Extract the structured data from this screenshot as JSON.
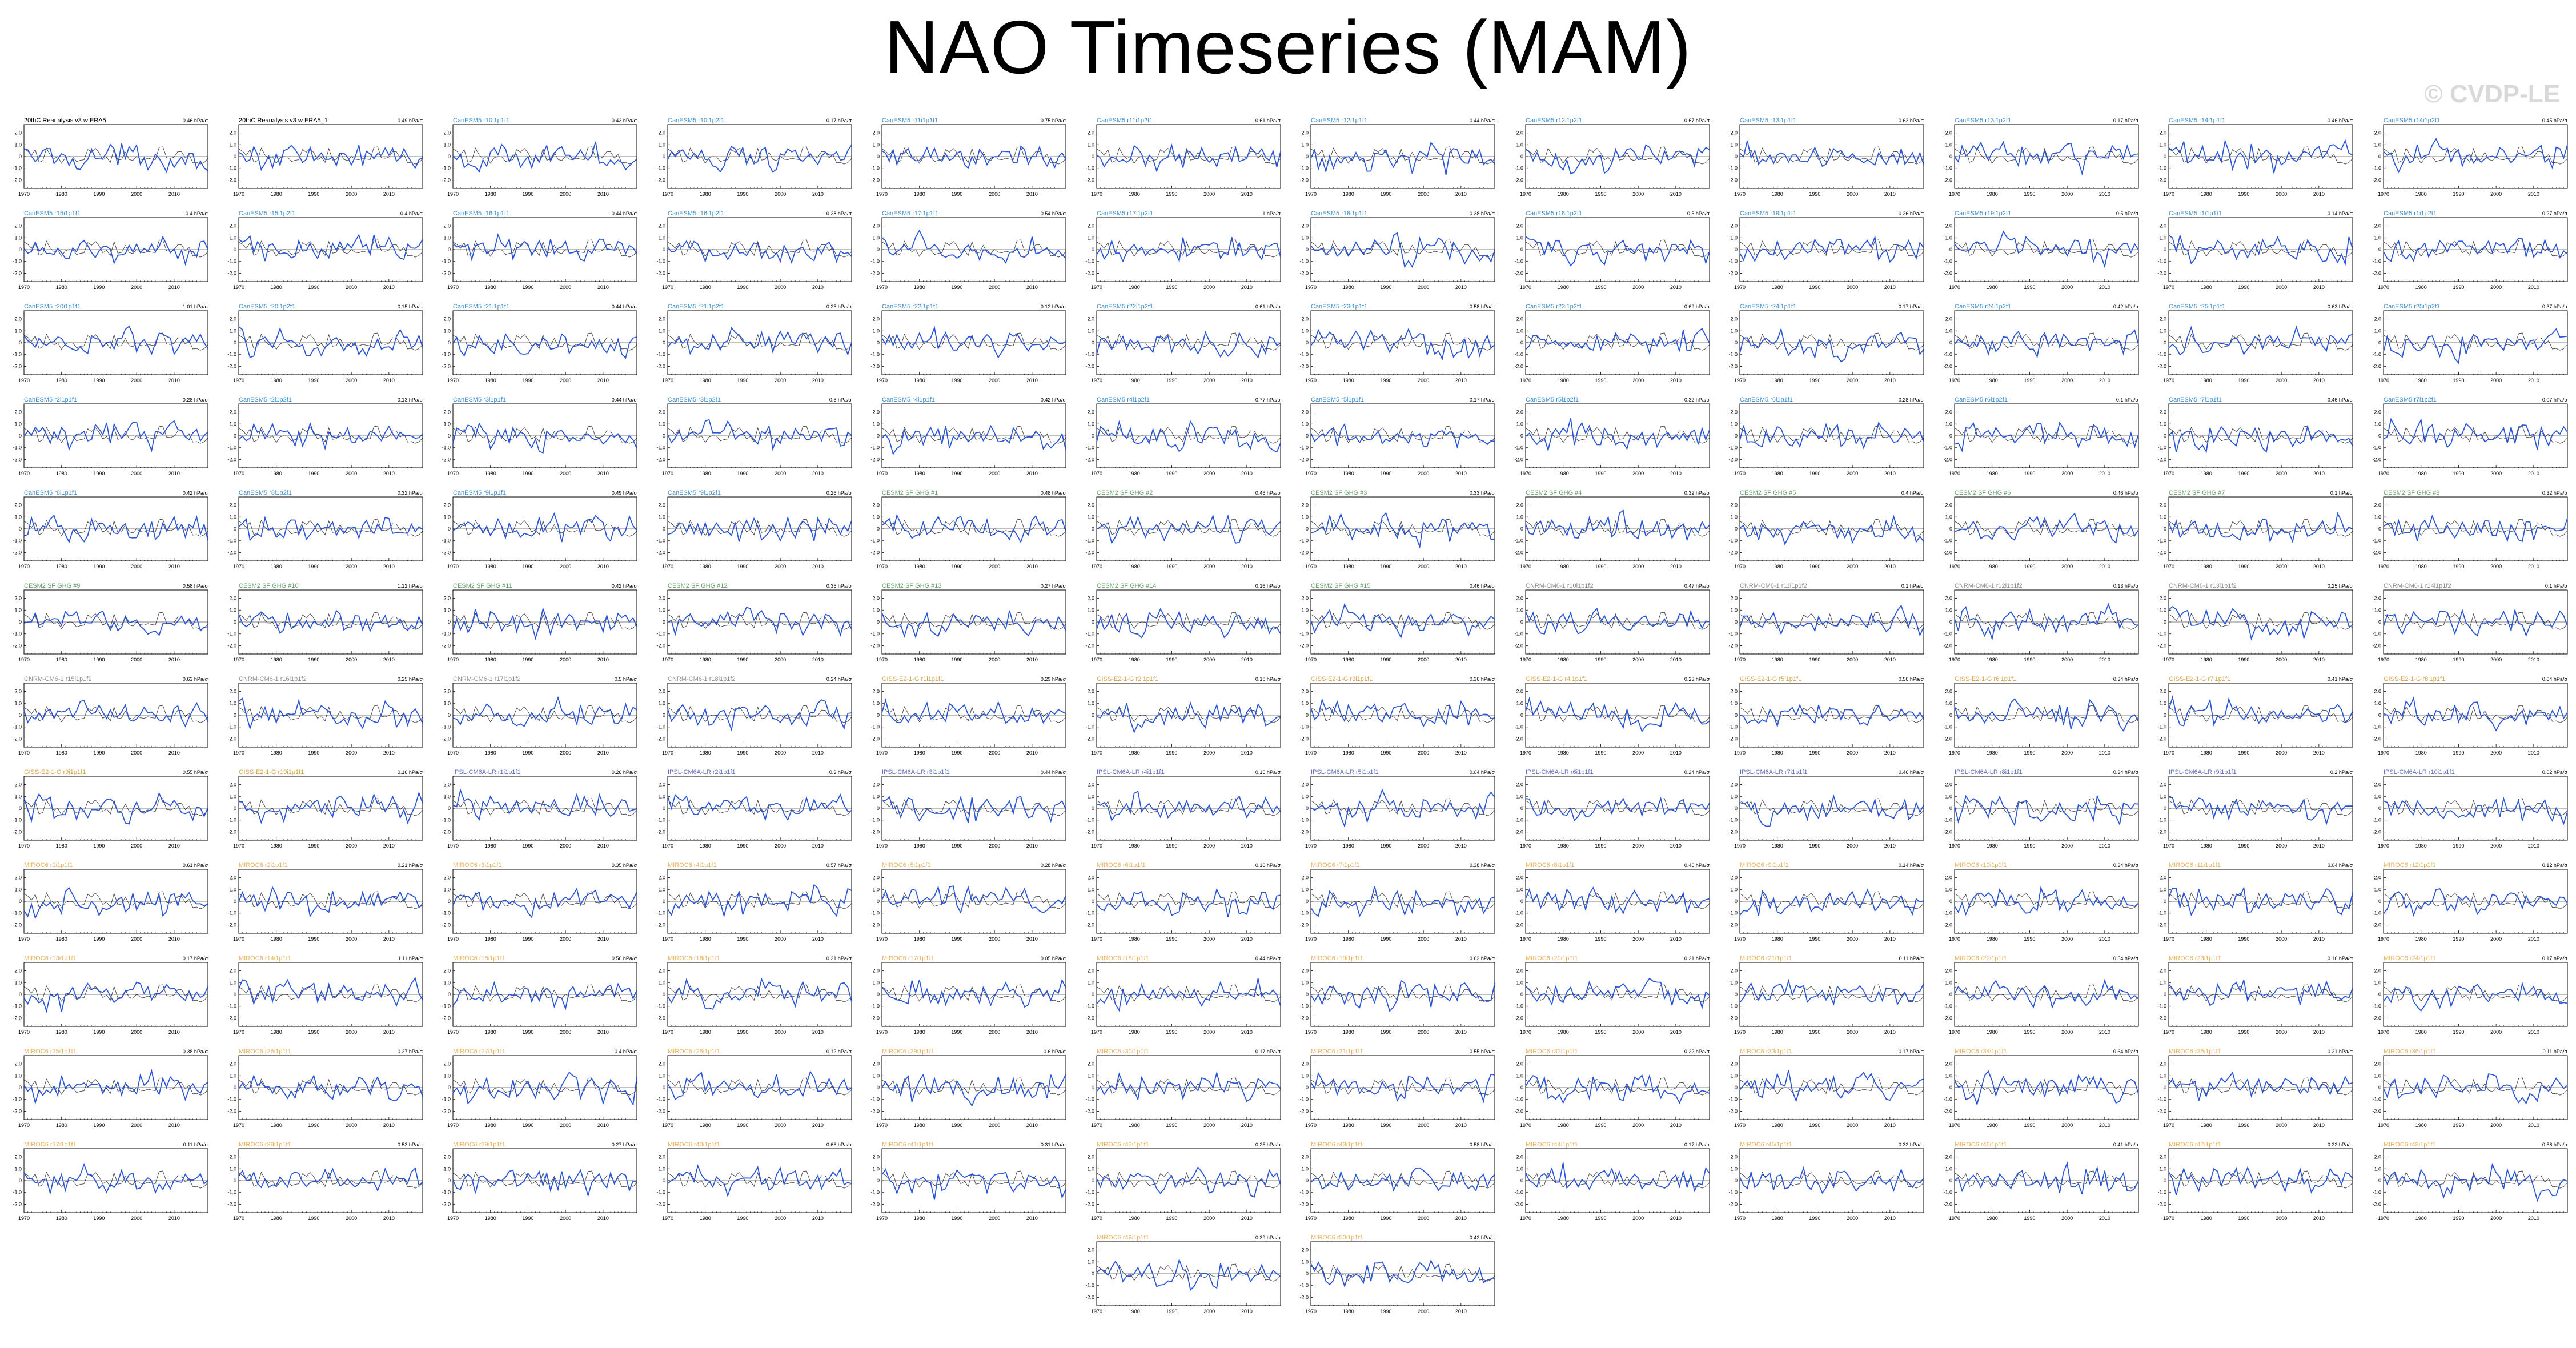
{
  "page": {
    "title": "NAO Timeseries (MAM)",
    "watermark": "© CVDP-LE"
  },
  "colors": {
    "model": "#2a55d8",
    "observed": "#000000",
    "title_obs": "#000000",
    "title_cesm": "#3d8fd0",
    "title_cesm_sf": "#63a06a",
    "title_canesm": "#8f8f8f",
    "title_gfdl": "#d8a44a",
    "title_ipsl": "#5e6fc0",
    "title_miroc": "#e9b35f"
  },
  "chart_data": {
    "type": "line",
    "xlim": [
      1970,
      2019
    ],
    "x_ticks": [
      "1970",
      "1980",
      "1990",
      "2000",
      "2010"
    ],
    "ylim": [
      -2.7,
      2.7
    ],
    "y_ticks": [
      "2.0",
      "1.0",
      "0",
      "-1.0",
      "-2.0"
    ],
    "grid": false,
    "years": [
      1970,
      2019
    ],
    "panels": [
      {
        "title": "20thC Reanalysis v3 w ERA5",
        "note": "0.46 hPa/σ",
        "group": "obs"
      },
      {
        "title": "20thC Reanalysis v3 w ERA5_1",
        "note": "0.49 hPa/σ",
        "group": "obs"
      },
      {
        "title": "CanESM5 r10i1p1f1",
        "note": "0.43 hPa/σ",
        "group": "cesm"
      },
      {
        "title": "CanESM5 r10i1p2f1",
        "note": "0.17 hPa/σ",
        "group": "cesm"
      },
      {
        "title": "CanESM5 r11i1p1f1",
        "note": "0.75 hPa/σ",
        "group": "cesm"
      },
      {
        "title": "CanESM5 r11i1p2f1",
        "note": "0.61 hPa/σ",
        "group": "cesm"
      },
      {
        "title": "CanESM5 r12i1p1f1",
        "note": "0.44 hPa/σ",
        "group": "cesm"
      },
      {
        "title": "CanESM5 r12i1p2f1",
        "note": "0.67 hPa/σ",
        "group": "cesm"
      },
      {
        "title": "CanESM5 r13i1p1f1",
        "note": "0.63 hPa/σ",
        "group": "cesm"
      },
      {
        "title": "CanESM5 r13i1p2f1",
        "note": "0.17 hPa/σ",
        "group": "cesm"
      },
      {
        "title": "CanESM5 r14i1p1f1",
        "note": "0.46 hPa/σ",
        "group": "cesm"
      },
      {
        "title": "CanESM5 r14i1p2f1",
        "note": "0.45 hPa/σ",
        "group": "cesm"
      },
      {
        "title": "CanESM5 r15i1p1f1",
        "note": "0.4 hPa/σ",
        "group": "cesm"
      },
      {
        "title": "CanESM5 r15i1p2f1",
        "note": "0.4 hPa/σ",
        "group": "cesm"
      },
      {
        "title": "CanESM5 r16i1p1f1",
        "note": "0.44 hPa/σ",
        "group": "cesm"
      },
      {
        "title": "CanESM5 r16i1p2f1",
        "note": "0.28 hPa/σ",
        "group": "cesm"
      },
      {
        "title": "CanESM5 r17i1p1f1",
        "note": "0.54 hPa/σ",
        "group": "cesm"
      },
      {
        "title": "CanESM5 r17i1p2f1",
        "note": "1 hPa/σ",
        "group": "cesm"
      },
      {
        "title": "CanESM5 r18i1p1f1",
        "note": "0.38 hPa/σ",
        "group": "cesm"
      },
      {
        "title": "CanESM5 r18i1p2f1",
        "note": "0.5 hPa/σ",
        "group": "cesm"
      },
      {
        "title": "CanESM5 r19i1p1f1",
        "note": "0.26 hPa/σ",
        "group": "cesm"
      },
      {
        "title": "CanESM5 r19i1p2f1",
        "note": "0.5 hPa/σ",
        "group": "cesm"
      },
      {
        "title": "CanESM5 r1i1p1f1",
        "note": "0.14 hPa/σ",
        "group": "cesm"
      },
      {
        "title": "CanESM5 r1i1p2f1",
        "note": "0.27 hPa/σ",
        "group": "cesm"
      },
      {
        "title": "CanESM5 r20i1p1f1",
        "note": "1.01 hPa/σ",
        "group": "cesm"
      },
      {
        "title": "CanESM5 r20i1p2f1",
        "note": "0.15 hPa/σ",
        "group": "cesm"
      },
      {
        "title": "CanESM5 r21i1p1f1",
        "note": "0.44 hPa/σ",
        "group": "cesm"
      },
      {
        "title": "CanESM5 r21i1p2f1",
        "note": "0.25 hPa/σ",
        "group": "cesm"
      },
      {
        "title": "CanESM5 r22i1p1f1",
        "note": "0.12 hPa/σ",
        "group": "cesm"
      },
      {
        "title": "CanESM5 r22i1p2f1",
        "note": "0.61 hPa/σ",
        "group": "cesm"
      },
      {
        "title": "CanESM5 r23i1p1f1",
        "note": "0.58 hPa/σ",
        "group": "cesm"
      },
      {
        "title": "CanESM5 r23i1p2f1",
        "note": "0.69 hPa/σ",
        "group": "cesm"
      },
      {
        "title": "CanESM5 r24i1p1f1",
        "note": "0.17 hPa/σ",
        "group": "cesm"
      },
      {
        "title": "CanESM5 r24i1p2f1",
        "note": "0.42 hPa/σ",
        "group": "cesm"
      },
      {
        "title": "CanESM5 r25i1p1f1",
        "note": "0.63 hPa/σ",
        "group": "cesm"
      },
      {
        "title": "CanESM5 r25i1p2f1",
        "note": "0.37 hPa/σ",
        "group": "cesm"
      },
      {
        "title": "CanESM5 r2i1p1f1",
        "note": "0.28 hPa/σ",
        "group": "cesm"
      },
      {
        "title": "CanESM5 r2i1p2f1",
        "note": "0.13 hPa/σ",
        "group": "cesm"
      },
      {
        "title": "CanESM5 r3i1p1f1",
        "note": "0.44 hPa/σ",
        "group": "cesm"
      },
      {
        "title": "CanESM5 r3i1p2f1",
        "note": "0.5 hPa/σ",
        "group": "cesm"
      },
      {
        "title": "CanESM5 r4i1p1f1",
        "note": "0.42 hPa/σ",
        "group": "cesm"
      },
      {
        "title": "CanESM5 r4i1p2f1",
        "note": "0.77 hPa/σ",
        "group": "cesm"
      },
      {
        "title": "CanESM5 r5i1p1f1",
        "note": "0.17 hPa/σ",
        "group": "cesm"
      },
      {
        "title": "CanESM5 r5i1p2f1",
        "note": "0.32 hPa/σ",
        "group": "cesm"
      },
      {
        "title": "CanESM5 r6i1p1f1",
        "note": "0.28 hPa/σ",
        "group": "cesm"
      },
      {
        "title": "CanESM5 r6i1p2f1",
        "note": "0.1 hPa/σ",
        "group": "cesm"
      },
      {
        "title": "CanESM5 r7i1p1f1",
        "note": "0.46 hPa/σ",
        "group": "cesm"
      },
      {
        "title": "CanESM5 r7i1p2f1",
        "note": "0.07 hPa/σ",
        "group": "cesm"
      },
      {
        "title": "CanESM5 r8i1p1f1",
        "note": "0.42 hPa/σ",
        "group": "cesm"
      },
      {
        "title": "CanESM5 r8i1p2f1",
        "note": "0.32 hPa/σ",
        "group": "cesm"
      },
      {
        "title": "CanESM5 r9i1p1f1",
        "note": "0.49 hPa/σ",
        "group": "cesm"
      },
      {
        "title": "CanESM5 r9i1p2f1",
        "note": "0.26 hPa/σ",
        "group": "cesm"
      },
      {
        "title": "CESM2 SF GHG #1",
        "note": "0.48 hPa/σ",
        "group": "cesm_sf"
      },
      {
        "title": "CESM2 SF GHG #2",
        "note": "0.46 hPa/σ",
        "group": "cesm_sf"
      },
      {
        "title": "CESM2 SF GHG #3",
        "note": "0.33 hPa/σ",
        "group": "cesm_sf"
      },
      {
        "title": "CESM2 SF GHG #4",
        "note": "0.32 hPa/σ",
        "group": "cesm_sf"
      },
      {
        "title": "CESM2 SF GHG #5",
        "note": "0.4 hPa/σ",
        "group": "cesm_sf"
      },
      {
        "title": "CESM2 SF GHG #6",
        "note": "0.46 hPa/σ",
        "group": "cesm_sf"
      },
      {
        "title": "CESM2 SF GHG #7",
        "note": "0.1 hPa/σ",
        "group": "cesm_sf"
      },
      {
        "title": "CESM2 SF GHG #8",
        "note": "0.32 hPa/σ",
        "group": "cesm_sf"
      },
      {
        "title": "CESM2 SF GHG #9",
        "note": "0.58 hPa/σ",
        "group": "cesm_sf"
      },
      {
        "title": "CESM2 SF GHG #10",
        "note": "1.12 hPa/σ",
        "group": "cesm_sf"
      },
      {
        "title": "CESM2 SF GHG #11",
        "note": "0.42 hPa/σ",
        "group": "cesm_sf"
      },
      {
        "title": "CESM2 SF GHG #12",
        "note": "0.35 hPa/σ",
        "group": "cesm_sf"
      },
      {
        "title": "CESM2 SF GHG #13",
        "note": "0.27 hPa/σ",
        "group": "cesm_sf"
      },
      {
        "title": "CESM2 SF GHG #14",
        "note": "0.16 hPa/σ",
        "group": "cesm_sf"
      },
      {
        "title": "CESM2 SF GHG #15",
        "note": "0.46 hPa/σ",
        "group": "cesm_sf"
      },
      {
        "title": "CNRM-CM6-1 r10i1p1f2",
        "note": "0.47 hPa/σ",
        "group": "canesm"
      },
      {
        "title": "CNRM-CM6-1 r11i1p1f2",
        "note": "0.1 hPa/σ",
        "group": "canesm"
      },
      {
        "title": "CNRM-CM6-1 r12i1p1f2",
        "note": "0.13 hPa/σ",
        "group": "canesm"
      },
      {
        "title": "CNRM-CM6-1 r13i1p1f2",
        "note": "0.25 hPa/σ",
        "group": "canesm"
      },
      {
        "title": "CNRM-CM6-1 r14i1p1f2",
        "note": "0.1 hPa/σ",
        "group": "canesm"
      },
      {
        "title": "CNRM-CM6-1 r15i1p1f2",
        "note": "0.63 hPa/σ",
        "group": "canesm"
      },
      {
        "title": "CNRM-CM6-1 r16i1p1f2",
        "note": "0.25 hPa/σ",
        "group": "canesm"
      },
      {
        "title": "CNRM-CM6-1 r17i1p1f2",
        "note": "0.5 hPa/σ",
        "group": "canesm"
      },
      {
        "title": "CNRM-CM6-1 r18i1p1f2",
        "note": "0.24 hPa/σ",
        "group": "canesm"
      },
      {
        "title": "GISS-E2-1-G r1i1p1f1",
        "note": "0.29 hPa/σ",
        "group": "gfdl"
      },
      {
        "title": "GISS-E2-1-G r2i1p1f1",
        "note": "0.18 hPa/σ",
        "group": "gfdl"
      },
      {
        "title": "GISS-E2-1-G r3i1p1f1",
        "note": "0.36 hPa/σ",
        "group": "gfdl"
      },
      {
        "title": "GISS-E2-1-G r4i1p1f1",
        "note": "0.23 hPa/σ",
        "group": "gfdl"
      },
      {
        "title": "GISS-E2-1-G r5i1p1f1",
        "note": "0.56 hPa/σ",
        "group": "gfdl"
      },
      {
        "title": "GISS-E2-1-G r6i1p1f1",
        "note": "0.34 hPa/σ",
        "group": "gfdl"
      },
      {
        "title": "GISS-E2-1-G r7i1p1f1",
        "note": "0.41 hPa/σ",
        "group": "gfdl"
      },
      {
        "title": "GISS-E2-1-G r8i1p1f1",
        "note": "0.64 hPa/σ",
        "group": "gfdl"
      },
      {
        "title": "GISS-E2-1-G r9i1p1f1",
        "note": "0.55 hPa/σ",
        "group": "gfdl"
      },
      {
        "title": "GISS-E2-1-G r10i1p1f1",
        "note": "0.16 hPa/σ",
        "group": "gfdl"
      },
      {
        "title": "IPSL-CM6A-LR r1i1p1f1",
        "note": "0.26 hPa/σ",
        "group": "ipsl"
      },
      {
        "title": "IPSL-CM6A-LR r2i1p1f1",
        "note": "0.3 hPa/σ",
        "group": "ipsl"
      },
      {
        "title": "IPSL-CM6A-LR r3i1p1f1",
        "note": "0.44 hPa/σ",
        "group": "ipsl"
      },
      {
        "title": "IPSL-CM6A-LR r4i1p1f1",
        "note": "0.16 hPa/σ",
        "group": "ipsl"
      },
      {
        "title": "IPSL-CM6A-LR r5i1p1f1",
        "note": "0.04 hPa/σ",
        "group": "ipsl"
      },
      {
        "title": "IPSL-CM6A-LR r6i1p1f1",
        "note": "0.24 hPa/σ",
        "group": "ipsl"
      },
      {
        "title": "IPSL-CM6A-LR r7i1p1f1",
        "note": "0.46 hPa/σ",
        "group": "ipsl"
      },
      {
        "title": "IPSL-CM6A-LR r8i1p1f1",
        "note": "0.34 hPa/σ",
        "group": "ipsl"
      },
      {
        "title": "IPSL-CM6A-LR r9i1p1f1",
        "note": "0.2 hPa/σ",
        "group": "ipsl"
      },
      {
        "title": "IPSL-CM6A-LR r10i1p1f1",
        "note": "0.62 hPa/σ",
        "group": "ipsl"
      },
      {
        "title": "MIROC6 r1i1p1f1",
        "note": "0.61 hPa/σ",
        "group": "miroc"
      },
      {
        "title": "MIROC6 r2i1p1f1",
        "note": "0.21 hPa/σ",
        "group": "miroc"
      },
      {
        "title": "MIROC6 r3i1p1f1",
        "note": "0.35 hPa/σ",
        "group": "miroc"
      },
      {
        "title": "MIROC6 r4i1p1f1",
        "note": "0.57 hPa/σ",
        "group": "miroc"
      },
      {
        "title": "MIROC6 r5i1p1f1",
        "note": "0.28 hPa/σ",
        "group": "miroc"
      },
      {
        "title": "MIROC6 r6i1p1f1",
        "note": "0.16 hPa/σ",
        "group": "miroc"
      },
      {
        "title": "MIROC6 r7i1p1f1",
        "note": "0.38 hPa/σ",
        "group": "miroc"
      },
      {
        "title": "MIROC6 r8i1p1f1",
        "note": "0.46 hPa/σ",
        "group": "miroc"
      },
      {
        "title": "MIROC6 r9i1p1f1",
        "note": "0.14 hPa/σ",
        "group": "miroc"
      },
      {
        "title": "MIROC6 r10i1p1f1",
        "note": "0.34 hPa/σ",
        "group": "miroc"
      },
      {
        "title": "MIROC6 r11i1p1f1",
        "note": "0.04 hPa/σ",
        "group": "miroc"
      },
      {
        "title": "MIROC6 r12i1p1f1",
        "note": "0.12 hPa/σ",
        "group": "miroc"
      },
      {
        "title": "MIROC6 r13i1p1f1",
        "note": "0.17 hPa/σ",
        "group": "miroc"
      },
      {
        "title": "MIROC6 r14i1p1f1",
        "note": "1.11 hPa/σ",
        "group": "miroc"
      },
      {
        "title": "MIROC6 r15i1p1f1",
        "note": "0.56 hPa/σ",
        "group": "miroc"
      },
      {
        "title": "MIROC6 r16i1p1f1",
        "note": "0.21 hPa/σ",
        "group": "miroc"
      },
      {
        "title": "MIROC6 r17i1p1f1",
        "note": "0.05 hPa/σ",
        "group": "miroc"
      },
      {
        "title": "MIROC6 r18i1p1f1",
        "note": "0.44 hPa/σ",
        "group": "miroc"
      },
      {
        "title": "MIROC6 r19i1p1f1",
        "note": "0.63 hPa/σ",
        "group": "miroc"
      },
      {
        "title": "MIROC6 r20i1p1f1",
        "note": "0.21 hPa/σ",
        "group": "miroc"
      },
      {
        "title": "MIROC6 r21i1p1f1",
        "note": "0.11 hPa/σ",
        "group": "miroc"
      },
      {
        "title": "MIROC6 r22i1p1f1",
        "note": "0.54 hPa/σ",
        "group": "miroc"
      },
      {
        "title": "MIROC6 r23i1p1f1",
        "note": "0.16 hPa/σ",
        "group": "miroc"
      },
      {
        "title": "MIROC6 r24i1p1f1",
        "note": "0.17 hPa/σ",
        "group": "miroc"
      },
      {
        "title": "MIROC6 r25i1p1f1",
        "note": "0.38 hPa/σ",
        "group": "miroc"
      },
      {
        "title": "MIROC6 r26i1p1f1",
        "note": "0.27 hPa/σ",
        "group": "miroc"
      },
      {
        "title": "MIROC6 r27i1p1f1",
        "note": "0.4 hPa/σ",
        "group": "miroc"
      },
      {
        "title": "MIROC6 r28i1p1f1",
        "note": "0.12 hPa/σ",
        "group": "miroc"
      },
      {
        "title": "MIROC6 r29i1p1f1",
        "note": "0.6 hPa/σ",
        "group": "miroc"
      },
      {
        "title": "MIROC6 r30i1p1f1",
        "note": "0.17 hPa/σ",
        "group": "miroc"
      },
      {
        "title": "MIROC6 r31i1p1f1",
        "note": "0.55 hPa/σ",
        "group": "miroc"
      },
      {
        "title": "MIROC6 r32i1p1f1",
        "note": "0.22 hPa/σ",
        "group": "miroc"
      },
      {
        "title": "MIROC6 r33i1p1f1",
        "note": "0.17 hPa/σ",
        "group": "miroc"
      },
      {
        "title": "MIROC6 r34i1p1f1",
        "note": "0.64 hPa/σ",
        "group": "miroc"
      },
      {
        "title": "MIROC6 r35i1p1f1",
        "note": "0.21 hPa/σ",
        "group": "miroc"
      },
      {
        "title": "MIROC6 r36i1p1f1",
        "note": "0.11 hPa/σ",
        "group": "miroc"
      },
      {
        "title": "MIROC6 r37i1p1f1",
        "note": "0.11 hPa/σ",
        "group": "miroc"
      },
      {
        "title": "MIROC6 r38i1p1f1",
        "note": "0.53 hPa/σ",
        "group": "miroc"
      },
      {
        "title": "MIROC6 r39i1p1f1",
        "note": "0.27 hPa/σ",
        "group": "miroc"
      },
      {
        "title": "MIROC6 r40i1p1f1",
        "note": "0.66 hPa/σ",
        "group": "miroc"
      },
      {
        "title": "MIROC6 r41i1p1f1",
        "note": "0.31 hPa/σ",
        "group": "miroc"
      },
      {
        "title": "MIROC6 r42i1p1f1",
        "note": "0.25 hPa/σ",
        "group": "miroc"
      },
      {
        "title": "MIROC6 r43i1p1f1",
        "note": "0.58 hPa/σ",
        "group": "miroc"
      },
      {
        "title": "MIROC6 r44i1p1f1",
        "note": "0.17 hPa/σ",
        "group": "miroc"
      },
      {
        "title": "MIROC6 r45i1p1f1",
        "note": "0.32 hPa/σ",
        "group": "miroc"
      },
      {
        "title": "MIROC6 r46i1p1f1",
        "note": "0.41 hPa/σ",
        "group": "miroc"
      },
      {
        "title": "MIROC6 r47i1p1f1",
        "note": "0.22 hPa/σ",
        "group": "miroc"
      },
      {
        "title": "MIROC6 r48i1p1f1",
        "note": "0.58 hPa/σ",
        "group": "miroc"
      },
      {
        "title": "MIROC6 r49i1p1f1",
        "note": "0.39 hPa/σ",
        "group": "miroc"
      },
      {
        "title": "MIROC6 r50i1p1f1",
        "note": "0.42 hPa/σ",
        "group": "miroc"
      }
    ]
  }
}
